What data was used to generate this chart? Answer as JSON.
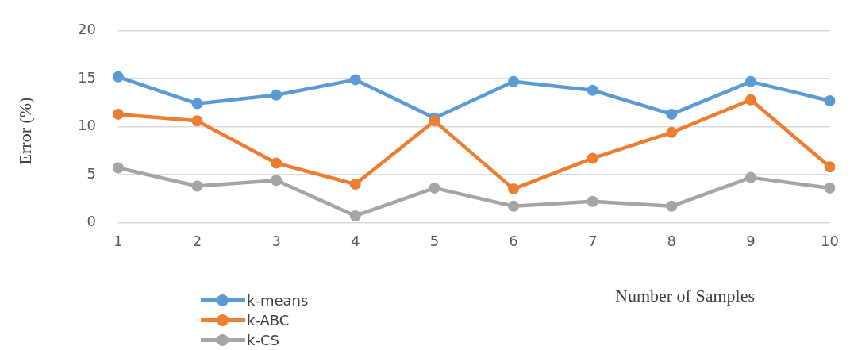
{
  "chart_data": {
    "type": "line",
    "xlabel": "Number of Samples",
    "ylabel": "Error (%)",
    "categories": [
      "1",
      "2",
      "3",
      "4",
      "5",
      "6",
      "7",
      "8",
      "9",
      "10"
    ],
    "series": [
      {
        "name": "k-means",
        "color": "#5b9bd5",
        "values": [
          15.2,
          12.4,
          13.3,
          14.9,
          10.9,
          14.7,
          13.8,
          11.3,
          14.7,
          12.7
        ]
      },
      {
        "name": "k-ABC",
        "color": "#ed7d31",
        "values": [
          11.3,
          10.6,
          6.2,
          4.0,
          10.6,
          3.5,
          6.7,
          9.4,
          12.8,
          5.8
        ]
      },
      {
        "name": "k-CS",
        "color": "#a5a5a5",
        "values": [
          5.7,
          3.8,
          4.4,
          0.7,
          3.6,
          1.7,
          2.2,
          1.7,
          4.7,
          3.6
        ]
      }
    ],
    "ylim": [
      0,
      20
    ],
    "yticks": [
      0,
      5,
      10,
      15,
      20
    ],
    "grid": "y",
    "legend": "bottom left",
    "marker": "circle",
    "line_style": "solid"
  }
}
